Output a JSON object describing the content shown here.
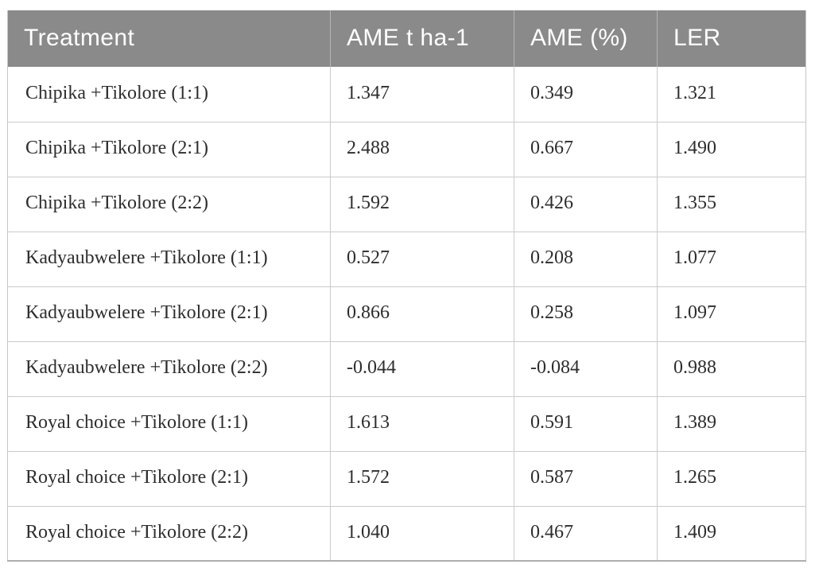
{
  "table": {
    "columns": [
      "Treatment",
      "AME t ha-1",
      "AME (%)",
      "LER"
    ],
    "rows": [
      [
        "Chipika +Tikolore (1:1)",
        "1.347",
        "0.349",
        "1.321"
      ],
      [
        "Chipika +Tikolore (2:1)",
        "2.488",
        "0.667",
        "1.490"
      ],
      [
        "Chipika +Tikolore (2:2)",
        "1.592",
        "0.426",
        "1.355"
      ],
      [
        "Kadyaubwelere +Tikolore (1:1)",
        "0.527",
        "0.208",
        "1.077"
      ],
      [
        "Kadyaubwelere +Tikolore (2:1)",
        "0.866",
        "0.258",
        "1.097"
      ],
      [
        "Kadyaubwelere +Tikolore (2:2)",
        "-0.044",
        "-0.084",
        "0.988"
      ],
      [
        "Royal choice +Tikolore (1:1)",
        "1.613",
        "0.591",
        "1.389"
      ],
      [
        "Royal choice +Tikolore (2:1)",
        "1.572",
        "0.587",
        "1.265"
      ],
      [
        "Royal choice +Tikolore (2:2)",
        "1.040",
        "0.467",
        "1.409"
      ]
    ]
  },
  "colors": {
    "header_background": "#8a8a8a",
    "header_text": "#ffffff",
    "body_text": "#2d2d2d",
    "grid_line": "#cbcbcb"
  }
}
